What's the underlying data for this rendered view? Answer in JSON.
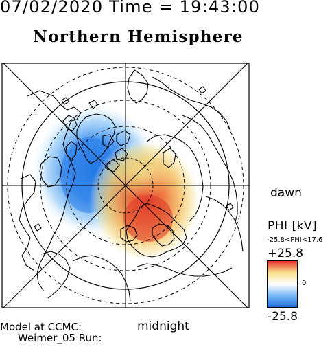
{
  "header": {
    "datetime": "07/02/2020 Time = 19:43:00",
    "hemisphere": "Northern Hemisphere"
  },
  "map": {
    "dawn_label": "dawn",
    "midnight_label": "midnight"
  },
  "colorbar": {
    "title": "PHI [kV]",
    "range_label": "-25.8<PHI<17.6",
    "max_label": "+25.8",
    "zero_label": "0",
    "min_label": "-25.8",
    "colors": [
      "#1a6fe0",
      "#79b9f5",
      "#ffffff",
      "#f7e08a",
      "#e8312a"
    ]
  },
  "potential_cells": [
    {
      "name": "dusk-cell",
      "sign": "negative",
      "peak_kv": -25.8,
      "color": "#2b7fe6"
    },
    {
      "name": "dawn-cell",
      "sign": "positive",
      "peak_kv": 17.6,
      "color": "#e0452f"
    }
  ],
  "footer": {
    "line1": "Model at CCMC:",
    "line2": "Weimer_05 Run:"
  }
}
